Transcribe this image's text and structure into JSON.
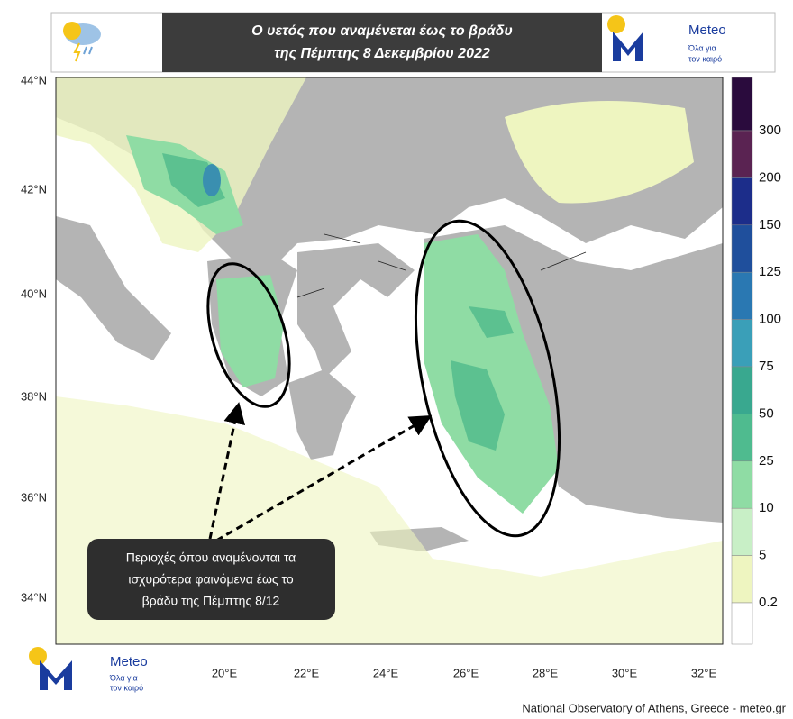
{
  "header": {
    "title_lines": [
      "Ο υετός που αναμένεται έως το βράδυ",
      "της Πέμπτης 8 Δεκεμβρίου 2022"
    ]
  },
  "logo": {
    "name": "Meteo",
    "tagline": [
      "Όλα για",
      "τον καιρό"
    ]
  },
  "map": {
    "lat_labels": [
      "44°N",
      "42°N",
      "40°N",
      "38°N",
      "36°N",
      "34°N"
    ],
    "lon_labels": [
      "20°E",
      "22°E",
      "24°E",
      "26°E",
      "28°E",
      "30°E",
      "32°E"
    ]
  },
  "colorbar": {
    "labels": [
      "300",
      "200",
      "150",
      "125",
      "100",
      "75",
      "50",
      "25",
      "10",
      "5",
      "0.2"
    ]
  },
  "annotation": {
    "lines": [
      "Περιοχές όπου αναμένονται τα",
      "ισχυρότερα φαινόμενα έως το",
      "βράδυ της Πέμπτης 8/12"
    ]
  },
  "footer": "National Observatory of Athens, Greece - meteo.gr"
}
